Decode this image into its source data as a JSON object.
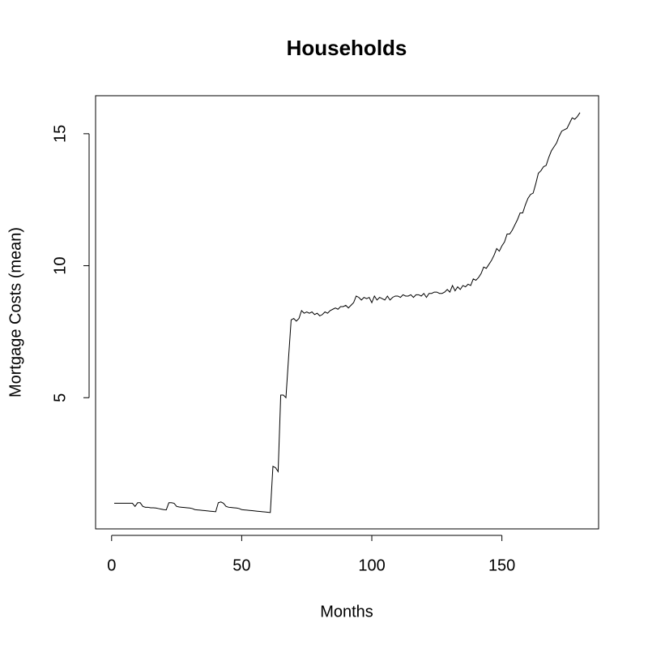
{
  "chart_data": {
    "type": "line",
    "title": "Households",
    "x_label": "Months",
    "y_label": "Mortgage Costs (mean)",
    "x": [
      1,
      2,
      3,
      4,
      5,
      6,
      7,
      8,
      9,
      10,
      11,
      12,
      13,
      14,
      15,
      16,
      17,
      18,
      19,
      20,
      21,
      22,
      23,
      24,
      25,
      26,
      27,
      28,
      29,
      30,
      31,
      32,
      33,
      34,
      35,
      36,
      37,
      38,
      39,
      40,
      41,
      42,
      43,
      44,
      45,
      46,
      47,
      48,
      49,
      50,
      51,
      52,
      53,
      54,
      55,
      56,
      57,
      58,
      59,
      60,
      61,
      62,
      63,
      64,
      65,
      66,
      67,
      68,
      69,
      70,
      71,
      72,
      73,
      74,
      75,
      76,
      77,
      78,
      79,
      80,
      81,
      82,
      83,
      84,
      85,
      86,
      87,
      88,
      89,
      90,
      91,
      92,
      93,
      94,
      95,
      96,
      97,
      98,
      99,
      100,
      101,
      102,
      103,
      104,
      105,
      106,
      107,
      108,
      109,
      110,
      111,
      112,
      113,
      114,
      115,
      116,
      117,
      118,
      119,
      120,
      121,
      122,
      123,
      124,
      125,
      126,
      127,
      128,
      129,
      130,
      131,
      132,
      133,
      134,
      135,
      136,
      137,
      138,
      139,
      140,
      141,
      142,
      143,
      144,
      145,
      146,
      147,
      148,
      149,
      150,
      151,
      152,
      153,
      154,
      155,
      156,
      157,
      158,
      159,
      160,
      161,
      162,
      163,
      164,
      165,
      166,
      167,
      168,
      169,
      170,
      171,
      172,
      173,
      174,
      175,
      176,
      177,
      178,
      179,
      180
    ],
    "series": [
      {
        "name": "Mortgage Costs",
        "color": "#000000",
        "values": [
          1.0,
          1.0,
          1.0,
          1.0,
          1.0,
          1.0,
          1.0,
          1.0,
          0.88,
          1.02,
          1.02,
          0.88,
          0.85,
          0.85,
          0.83,
          0.83,
          0.82,
          0.8,
          0.78,
          0.76,
          0.75,
          1.02,
          1.02,
          1.0,
          0.88,
          0.86,
          0.85,
          0.84,
          0.83,
          0.82,
          0.8,
          0.76,
          0.75,
          0.74,
          0.73,
          0.72,
          0.71,
          0.7,
          0.69,
          0.68,
          1.02,
          1.05,
          1.0,
          0.88,
          0.85,
          0.84,
          0.83,
          0.82,
          0.8,
          0.76,
          0.75,
          0.74,
          0.73,
          0.72,
          0.71,
          0.7,
          0.69,
          0.68,
          0.67,
          0.66,
          0.65,
          2.4,
          2.35,
          2.2,
          5.1,
          5.1,
          5.0,
          6.5,
          7.95,
          8.0,
          7.9,
          8.0,
          8.3,
          8.2,
          8.25,
          8.2,
          8.25,
          8.15,
          8.2,
          8.1,
          8.15,
          8.25,
          8.2,
          8.3,
          8.35,
          8.4,
          8.35,
          8.45,
          8.45,
          8.5,
          8.4,
          8.5,
          8.6,
          8.85,
          8.8,
          8.7,
          8.8,
          8.75,
          8.8,
          8.6,
          8.85,
          8.7,
          8.8,
          8.75,
          8.7,
          8.85,
          8.7,
          8.8,
          8.85,
          8.85,
          8.8,
          8.9,
          8.85,
          8.85,
          8.9,
          8.8,
          8.9,
          8.9,
          8.85,
          8.95,
          8.8,
          8.95,
          8.95,
          9.0,
          9.0,
          8.95,
          8.95,
          9.0,
          9.1,
          9.0,
          9.25,
          9.05,
          9.2,
          9.1,
          9.25,
          9.2,
          9.3,
          9.25,
          9.5,
          9.45,
          9.55,
          9.7,
          9.95,
          9.9,
          10.05,
          10.2,
          10.4,
          10.65,
          10.55,
          10.75,
          10.9,
          11.2,
          11.2,
          11.35,
          11.55,
          11.75,
          12.0,
          12.0,
          12.3,
          12.55,
          12.7,
          12.75,
          13.1,
          13.5,
          13.6,
          13.75,
          13.8,
          14.1,
          14.35,
          14.5,
          14.65,
          14.9,
          15.1,
          15.15,
          15.2,
          15.4,
          15.6,
          15.55,
          15.65,
          15.8
        ]
      }
    ],
    "xlim": [
      -6.16,
      187.16
    ],
    "ylim": [
      0.03,
      16.44
    ],
    "xticks": [
      0,
      50,
      100,
      150
    ],
    "yticks": [
      5,
      10,
      15
    ],
    "grid": false
  }
}
